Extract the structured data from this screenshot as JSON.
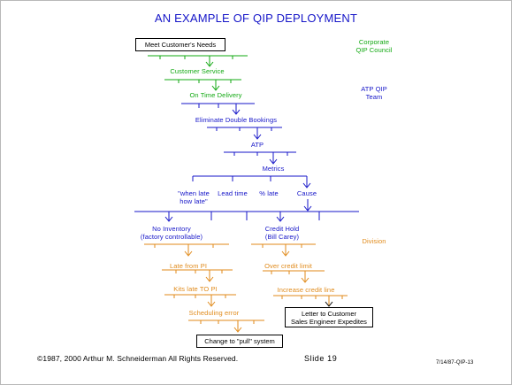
{
  "title": "AN EXAMPLE OF QIP DEPLOYMENT",
  "labels": {
    "corporate": [
      "Corporate",
      "QIP Council"
    ],
    "atp_team": [
      "ATP QIP",
      "Team"
    ],
    "division": "Division"
  },
  "nodes": {
    "meet_needs": "Meet Customer's Needs",
    "customer_service": "Customer Service",
    "on_time": "On Time Delivery",
    "eliminate": "Eliminate Double Bookings",
    "atp": "ATP",
    "metrics": "Metrics",
    "when_late": [
      "\"when late",
      "how late\""
    ],
    "lead_time": "Lead time",
    "pct_late": "% late",
    "cause": "Cause",
    "no_inventory": [
      "No Inventory",
      "(factory controllable)"
    ],
    "credit_hold": [
      "Credit Hold",
      "(Bill Carey)"
    ],
    "late_from_pi": "Late from PI",
    "over_credit": "Over credit limit",
    "kits_late": "Kits late TO PI",
    "increase_credit": "Increase credit line",
    "scheduling_error": "Scheduling error",
    "letter": [
      "Letter to Customer",
      "Sales Engineer Expedites"
    ],
    "change_system": "Change to \"pull\" system"
  },
  "footer": {
    "copyright": "©1987, 2000 Arthur M. Schneiderman  All Rights Reserved.",
    "slide": "Slide 19",
    "code": "7/14/87-QIP-13"
  },
  "colors": {
    "blue": "#1515c8",
    "green": "#10a810",
    "orange": "#e08a1a"
  }
}
